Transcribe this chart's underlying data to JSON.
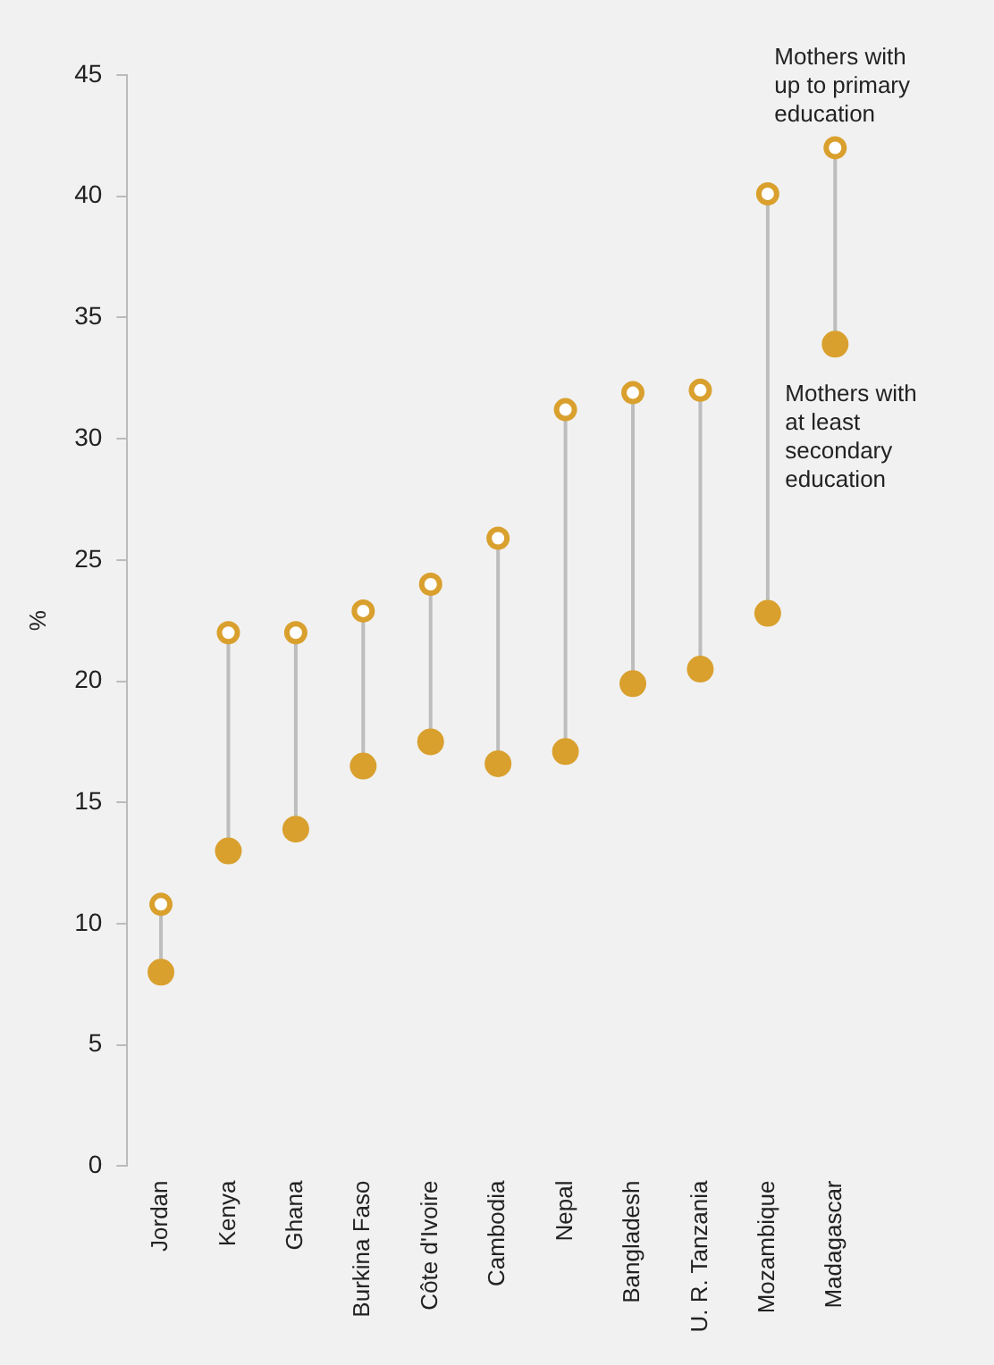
{
  "chart_data": {
    "type": "scatter",
    "ylabel": "%",
    "categories": [
      "Jordan",
      "Kenya",
      "Ghana",
      "Burkina Faso",
      "Côte d'Ivoire",
      "Cambodia",
      "Nepal",
      "Bangladesh",
      "U. R. Tanzania",
      "Mozambique",
      "Madagascar"
    ],
    "series": [
      {
        "name": "Mothers with up to primary education",
        "color": "#d9a02e",
        "marker": "circle",
        "values": [
          10.8,
          22.0,
          22.0,
          22.9,
          24.0,
          25.9,
          31.2,
          31.9,
          32.0,
          40.1,
          42.0
        ]
      },
      {
        "name": "Mothers with at least secondary education",
        "color": "#d9a02e",
        "marker": "circle",
        "values": [
          8.0,
          13.0,
          13.9,
          16.5,
          17.5,
          16.6,
          17.1,
          19.9,
          20.5,
          22.8,
          33.9
        ]
      }
    ],
    "ylim": [
      0,
      45
    ],
    "yticks": [
      0,
      5,
      10,
      15,
      20,
      25,
      30,
      35,
      40,
      45
    ],
    "grid": false,
    "legend": false
  }
}
